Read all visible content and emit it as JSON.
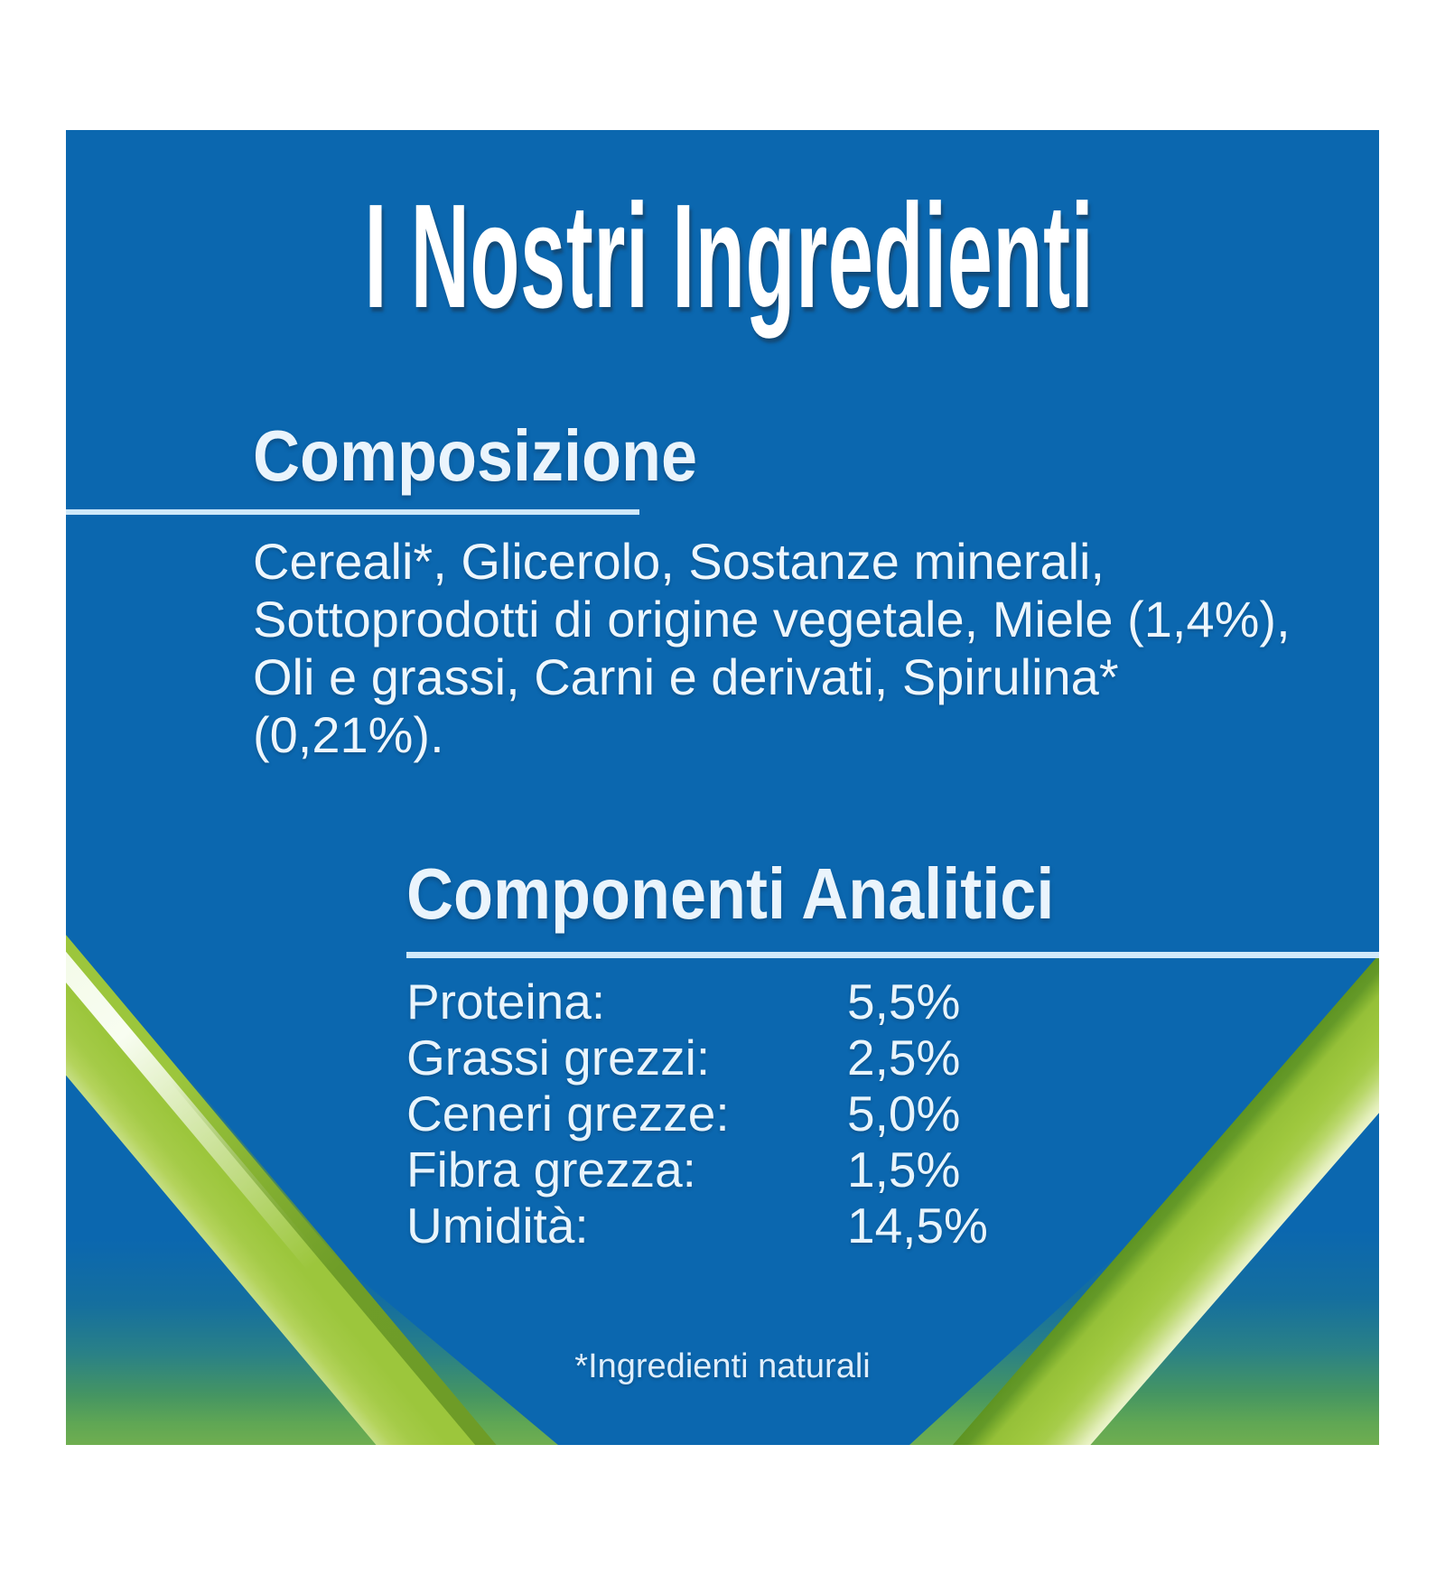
{
  "colors": {
    "panel_blue": "#0b67af",
    "text_light": "#edf6fd",
    "underline": "#cfe9fa",
    "green_bright": "#9cc63c",
    "green_olive": "#6b9b26",
    "green_pale_highlight": "#f7fcef",
    "corner_teal": "#2a8186",
    "corner_green": "#6fae50"
  },
  "panel": {
    "title": "I Nostri Ingredienti",
    "composition": {
      "heading": "Composizione",
      "text": "Cereali*, Glicerolo, Sostanze minerali, Sottoprodotti di origine vegetale, Miele (1,4%), Oli e grassi, Carni e derivati, Spirulina* (0,21%)."
    },
    "analytics": {
      "heading": "Componenti Analitici",
      "rows": [
        {
          "label": "Proteina:",
          "value": "5,5%"
        },
        {
          "label": "Grassi grezzi:",
          "value": "2,5%"
        },
        {
          "label": "Ceneri grezze:",
          "value": "5,0%"
        },
        {
          "label": "Fibra grezza:",
          "value": "1,5%"
        },
        {
          "label": "Umidità:",
          "value": "14,5%"
        }
      ]
    },
    "footnote": "*Ingredienti naturali"
  }
}
